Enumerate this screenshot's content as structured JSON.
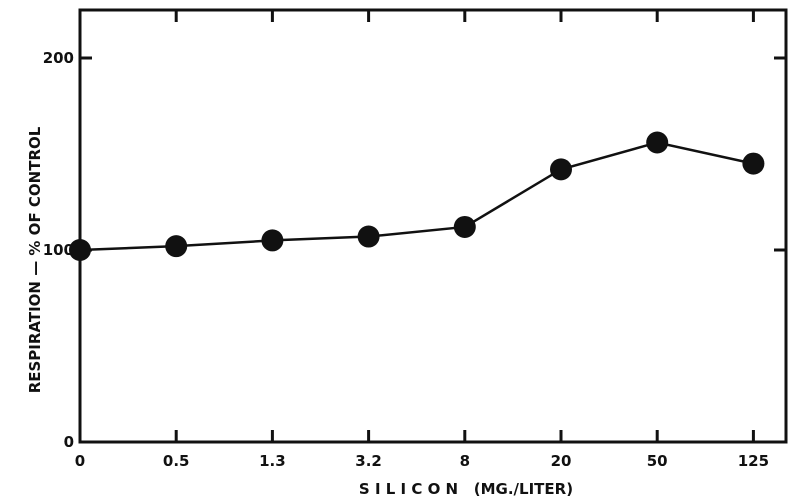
{
  "chart_data": {
    "type": "line",
    "title": "",
    "xlabel": "S I L I C O N   (MG./LITER)",
    "ylabel": "RESPIRATION — % OF CONTROL",
    "categories": [
      "0",
      "0.5",
      "1.3",
      "3.2",
      "8",
      "20",
      "50",
      "125"
    ],
    "series": [
      {
        "values": [
          100,
          102,
          105,
          107,
          112,
          142,
          156,
          145
        ]
      }
    ],
    "yticks": [
      "0",
      "100",
      "200"
    ],
    "ylim": [
      0,
      200
    ],
    "grid": false,
    "legend": "none"
  }
}
